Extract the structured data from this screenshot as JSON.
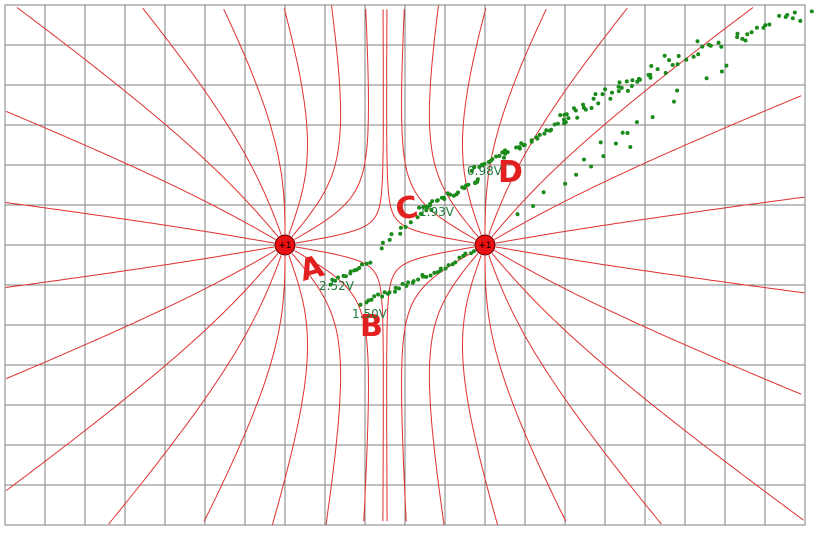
{
  "colors": {
    "background": "#ffffff",
    "grid": "#808080",
    "field_line": "#e03030",
    "charge_fill": "#e81010",
    "charge_stroke": "#600000",
    "equipotential_dot": "#1a8a1a",
    "voltage_text": "#1f7a3a",
    "annotation": "#e22020"
  },
  "grid": {
    "columns": 20,
    "rows": 13
  },
  "charges": [
    {
      "label": "+1"
    },
    {
      "label": "+1"
    }
  ],
  "voltage_readouts": [
    {
      "text": "2.52V"
    },
    {
      "text": "1.93V"
    },
    {
      "text": "0.98V"
    },
    {
      "text": "1.50V"
    }
  ],
  "hand_annotations": [
    {
      "letter": "A"
    },
    {
      "letter": "B"
    },
    {
      "letter": "C"
    },
    {
      "letter": "D"
    }
  ]
}
